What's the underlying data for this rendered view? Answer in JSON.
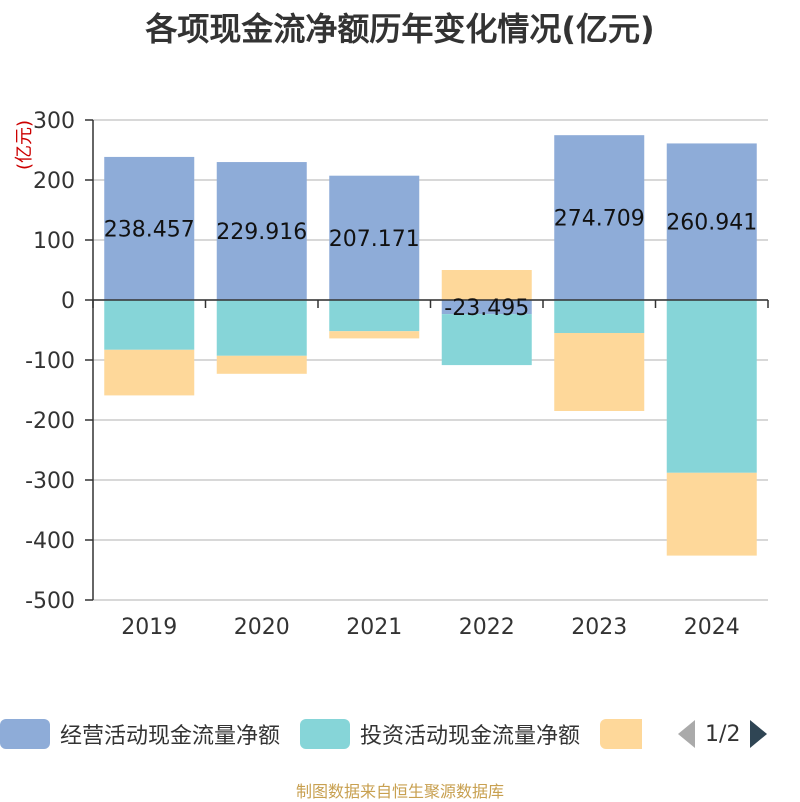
{
  "chart_data": {
    "type": "bar",
    "stacked": true,
    "title": "各项现金流净额历年变化情况(亿元)",
    "ylabel": "(亿元)",
    "xlabel": "",
    "ylim": [
      -500,
      300
    ],
    "yticks": [
      300,
      200,
      100,
      0,
      -100,
      -200,
      -300,
      -400,
      -500
    ],
    "categories": [
      "2019",
      "2020",
      "2021",
      "2022",
      "2023",
      "2024"
    ],
    "series": [
      {
        "name": "经营活动现金流量净额",
        "color": "#8eacd8",
        "values": [
          238.457,
          229.916,
          207.171,
          -23.495,
          274.709,
          260.941
        ],
        "labels": [
          "238.457",
          "229.916",
          "207.171",
          "-23.495",
          "274.709",
          "260.941"
        ]
      },
      {
        "name": "投资活动现金流量净额",
        "color": "#86d5d8",
        "values": [
          -83,
          -93,
          -52,
          -85,
          -55,
          -288
        ]
      },
      {
        "name": "",
        "color": "#fed89a",
        "values": [
          -76,
          -30,
          -12,
          50,
          -130,
          -138
        ]
      }
    ],
    "grid": true,
    "legend_position": "bottom"
  },
  "legend": {
    "page": "1/2"
  },
  "source_text": "制图数据来自恒生聚源数据库"
}
